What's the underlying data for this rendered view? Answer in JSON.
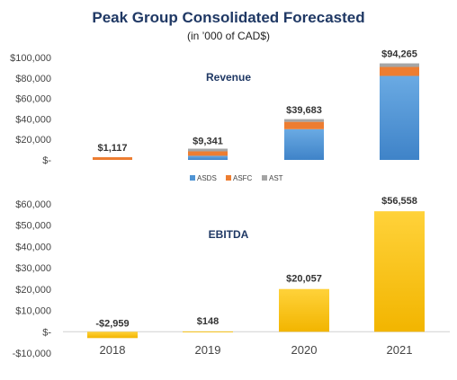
{
  "header": {
    "title": "Peak Group Consolidated Forecasted",
    "subtitle": "(in ’000 of CAD$)"
  },
  "chart_data": [
    {
      "type": "bar",
      "stacked": true,
      "title": "Revenue",
      "categories": [
        "2018",
        "2019",
        "2020",
        "2021"
      ],
      "series": [
        {
          "name": "ASDS",
          "color": "#4f94d4",
          "values": [
            0,
            4000,
            30000,
            82000
          ]
        },
        {
          "name": "ASFC",
          "color": "#ed7d31",
          "values": [
            1117,
            4341,
            7183,
            8765
          ]
        },
        {
          "name": "AST",
          "color": "#a5a5a5",
          "values": [
            0,
            1000,
            2500,
            3500
          ]
        }
      ],
      "totals": [
        1117,
        9341,
        39683,
        94265
      ],
      "total_labels": [
        "$1,117",
        "$9,341",
        "$39,683",
        "$94,265"
      ],
      "y_ticks": [
        "$100,000",
        "$80,000",
        "$60,000",
        "$40,000",
        "$20,000",
        "$-"
      ],
      "ylim": [
        0,
        100000
      ],
      "legend_position": "bottom"
    },
    {
      "type": "bar",
      "title": "EBITDA",
      "categories": [
        "2018",
        "2019",
        "2020",
        "2021"
      ],
      "values": [
        -2959,
        148,
        20057,
        56558
      ],
      "value_labels": [
        "-$2,959",
        "$148",
        "$20,057",
        "$56,558"
      ],
      "color": "#ffc000",
      "y_ticks": [
        "$60,000",
        "$50,000",
        "$40,000",
        "$30,000",
        "$20,000",
        "$10,000",
        "$-",
        "-$10,000"
      ],
      "ylim": [
        -10000,
        60000
      ]
    }
  ]
}
